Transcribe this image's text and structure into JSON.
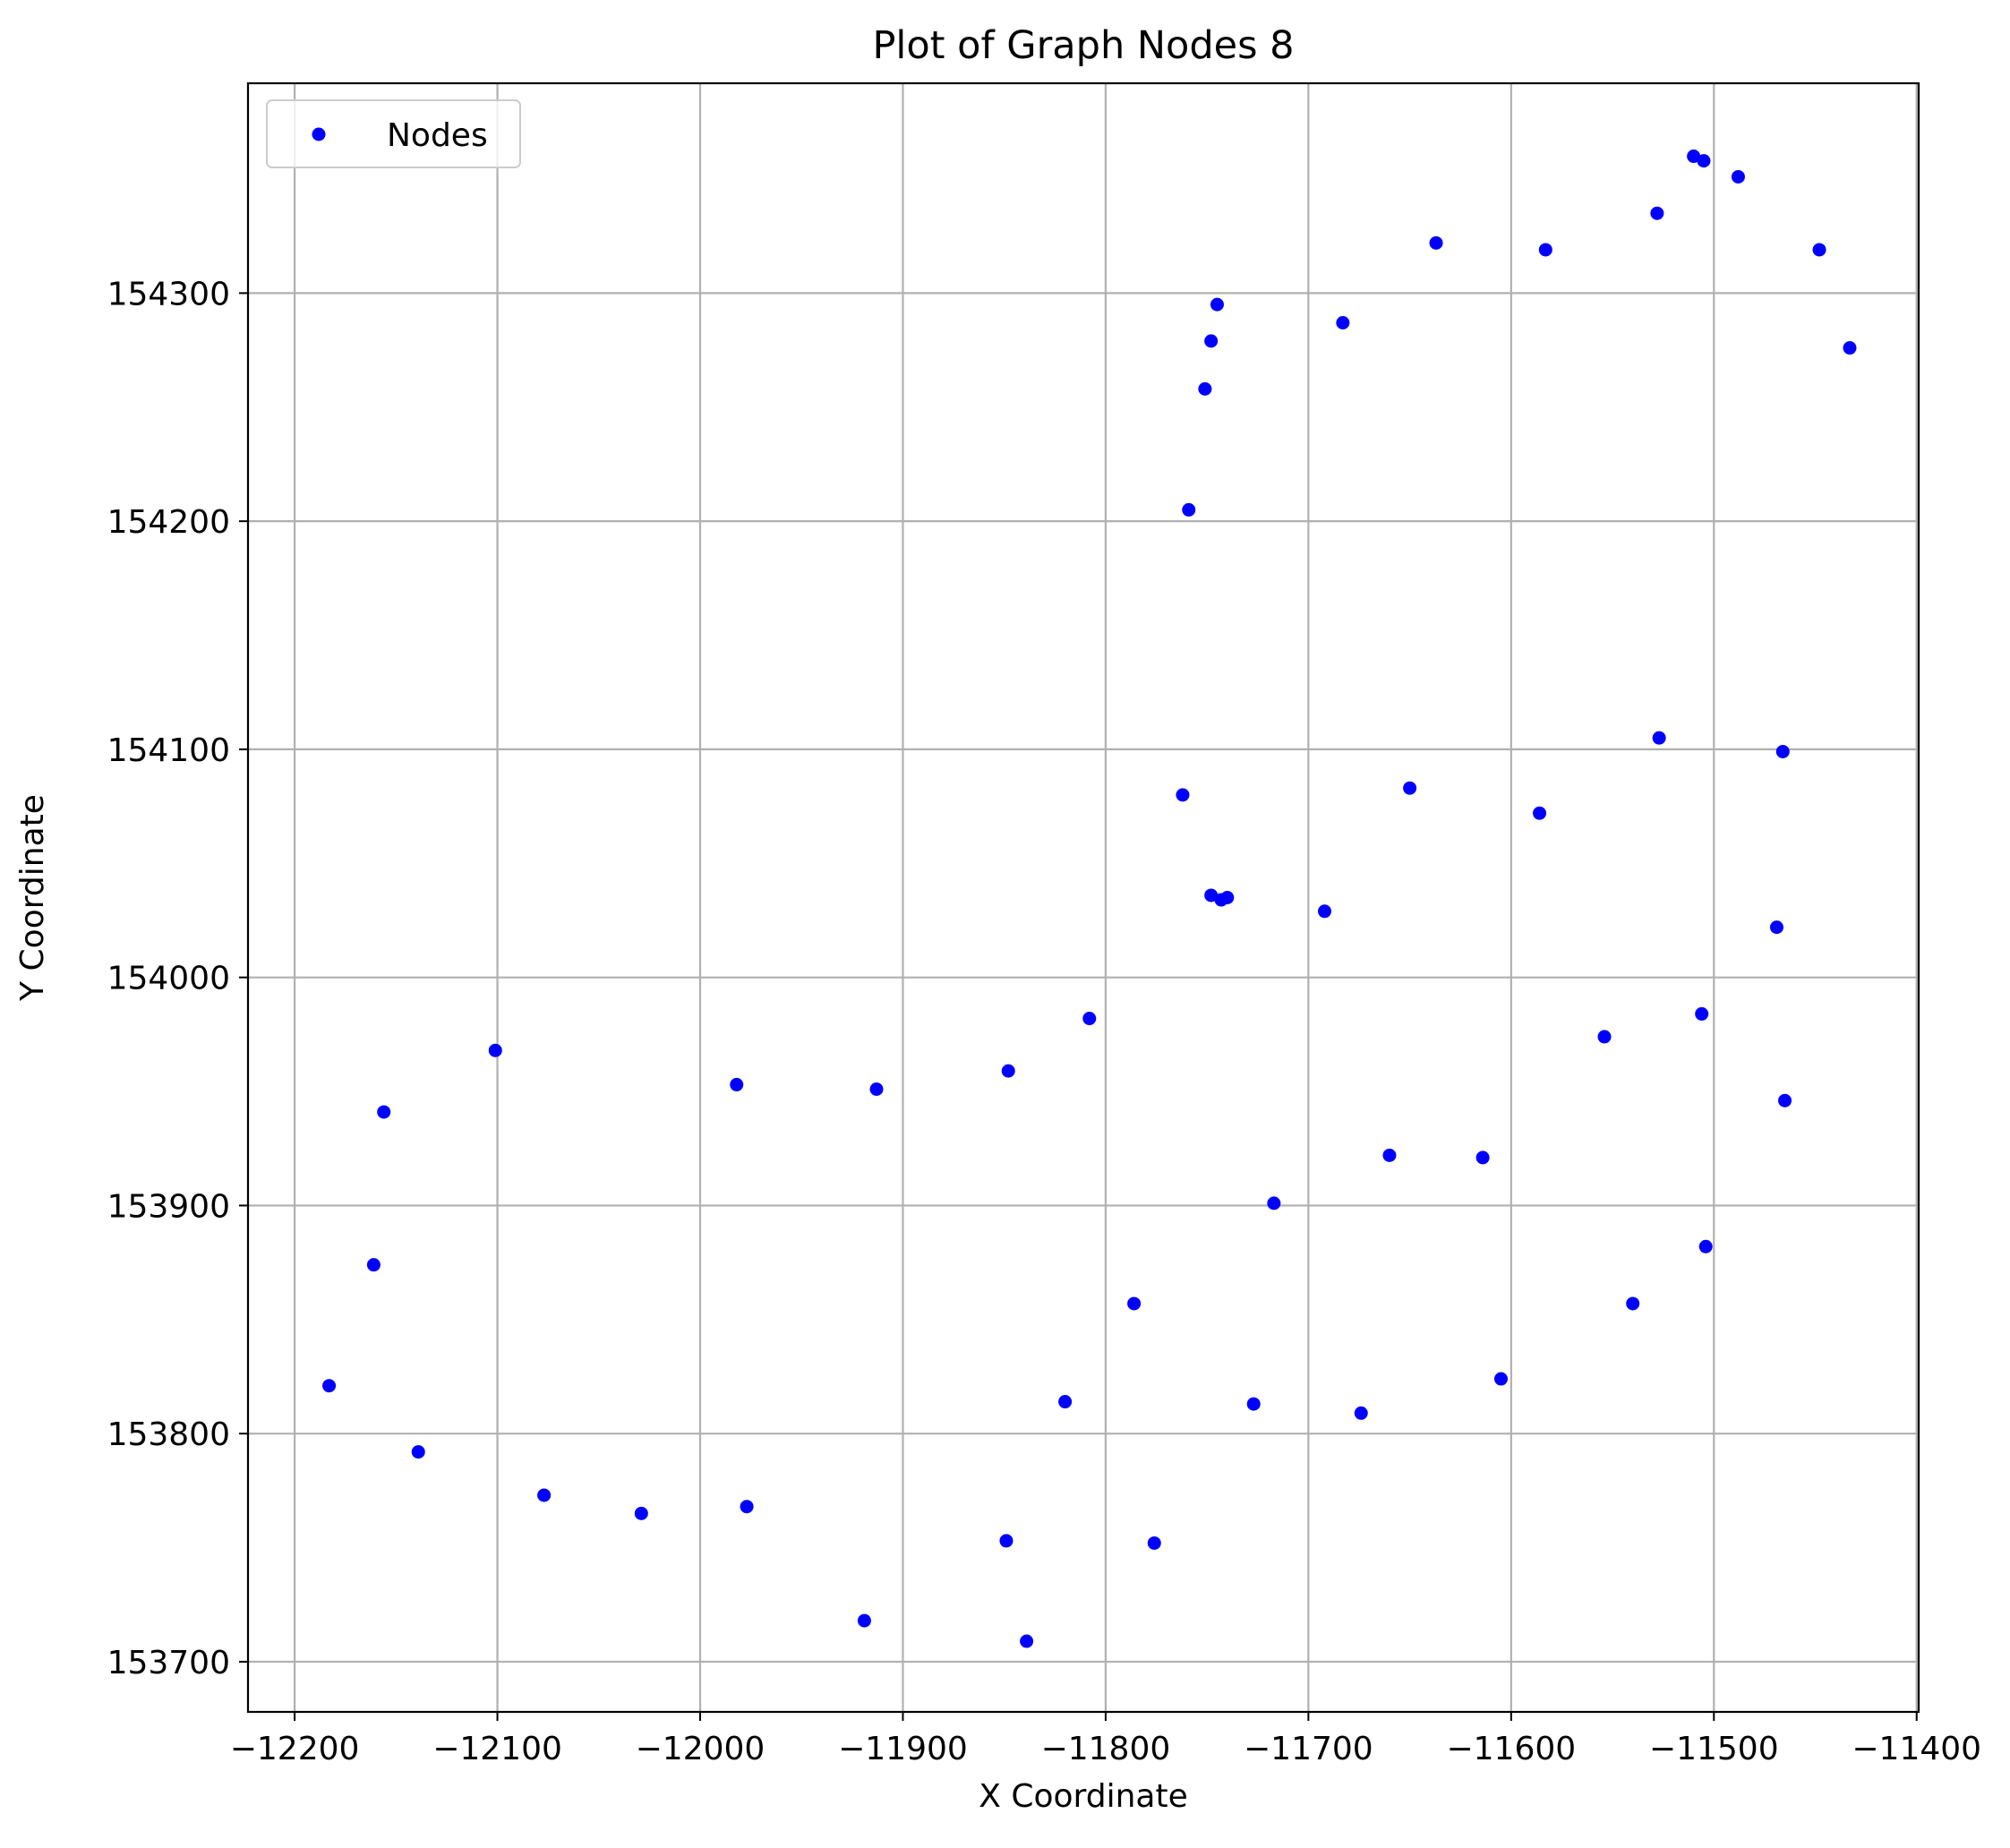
{
  "chart_data": {
    "type": "scatter",
    "title": "Plot of Graph Nodes 8",
    "xlabel": "X Coordinate",
    "ylabel": "Y Coordinate",
    "xlim": [
      -12223,
      -11399
    ],
    "ylim": [
      153678,
      154392
    ],
    "xticks": [
      -12200,
      -12100,
      -12000,
      -11900,
      -11800,
      -11700,
      -11600,
      -11500,
      -11400
    ],
    "yticks": [
      153700,
      153800,
      153900,
      154000,
      154100,
      154200,
      154300
    ],
    "xtick_labels": [
      "−12200",
      "−12100",
      "−12000",
      "−11900",
      "−11800",
      "−11700",
      "−11600",
      "−11500",
      "−11400"
    ],
    "ytick_labels": [
      "153700",
      "153800",
      "153900",
      "154000",
      "154100",
      "154200",
      "154300"
    ],
    "grid": true,
    "legend": {
      "position": "top-left",
      "entries": [
        "Nodes"
      ]
    },
    "series": [
      {
        "name": "Nodes",
        "color": "#0000ff",
        "points": [
          [
            -11510,
            154360
          ],
          [
            -11505,
            154358
          ],
          [
            -11488,
            154351
          ],
          [
            -11528,
            154335
          ],
          [
            -11637,
            154322
          ],
          [
            -11583,
            154319
          ],
          [
            -11448,
            154319
          ],
          [
            -11745,
            154295
          ],
          [
            -11683,
            154287
          ],
          [
            -11748,
            154279
          ],
          [
            -11433,
            154276
          ],
          [
            -11751,
            154258
          ],
          [
            -11759,
            154205
          ],
          [
            -11527,
            154105
          ],
          [
            -11466,
            154099
          ],
          [
            -11650,
            154083
          ],
          [
            -11762,
            154080
          ],
          [
            -11586,
            154072
          ],
          [
            -11748,
            154036
          ],
          [
            -11743,
            154034
          ],
          [
            -11740,
            154035
          ],
          [
            -11692,
            154029
          ],
          [
            -11469,
            154022
          ],
          [
            -11808,
            153982
          ],
          [
            -11506,
            153984
          ],
          [
            -12101,
            153968
          ],
          [
            -11554,
            153974
          ],
          [
            -11848,
            153959
          ],
          [
            -11982,
            153953
          ],
          [
            -11913,
            153951
          ],
          [
            -11465,
            153946
          ],
          [
            -12156,
            153941
          ],
          [
            -11660,
            153922
          ],
          [
            -11614,
            153921
          ],
          [
            -11717,
            153901
          ],
          [
            -12161,
            153874
          ],
          [
            -11504,
            153882
          ],
          [
            -11786,
            153857
          ],
          [
            -11540,
            153857
          ],
          [
            -12183,
            153821
          ],
          [
            -11605,
            153824
          ],
          [
            -11820,
            153814
          ],
          [
            -11727,
            153813
          ],
          [
            -11674,
            153809
          ],
          [
            -12139,
            153792
          ],
          [
            -12077,
            153773
          ],
          [
            -12029,
            153765
          ],
          [
            -11977,
            153768
          ],
          [
            -11849,
            153753
          ],
          [
            -11776,
            153752
          ],
          [
            -11919,
            153718
          ],
          [
            -11839,
            153709
          ]
        ]
      }
    ]
  }
}
